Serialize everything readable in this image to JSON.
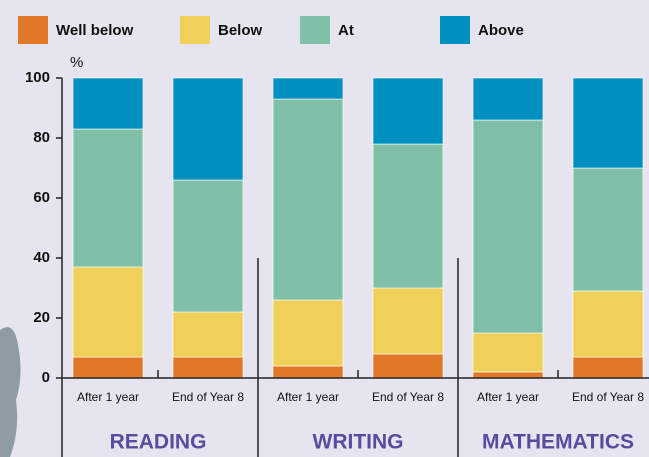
{
  "chart_data": {
    "type": "stacked_bar",
    "categories": [
      "After 1 year",
      "End of Year 8",
      "After 1 year",
      "End of Year 8",
      "After 1 year",
      "End of Year 8"
    ],
    "groups": [
      "READING",
      "WRITING",
      "MATHEMATICS"
    ],
    "y_label": "%",
    "series": [
      {
        "name": "Well below",
        "color": "#e07828",
        "values": [
          7,
          7,
          4,
          8,
          2,
          7
        ]
      },
      {
        "name": "Below",
        "color": "#f0d058",
        "values": [
          30,
          15,
          22,
          22,
          13,
          22
        ]
      },
      {
        "name": "At",
        "color": "#80c0a8",
        "values": [
          46,
          44,
          67,
          48,
          71,
          41
        ]
      },
      {
        "name": "Above",
        "color": "#0090c0",
        "values": [
          17,
          34,
          7,
          22,
          14,
          30
        ]
      }
    ],
    "ylim": [
      0,
      100
    ],
    "yticks": [
      0,
      20,
      40,
      60,
      80,
      100
    ]
  }
}
